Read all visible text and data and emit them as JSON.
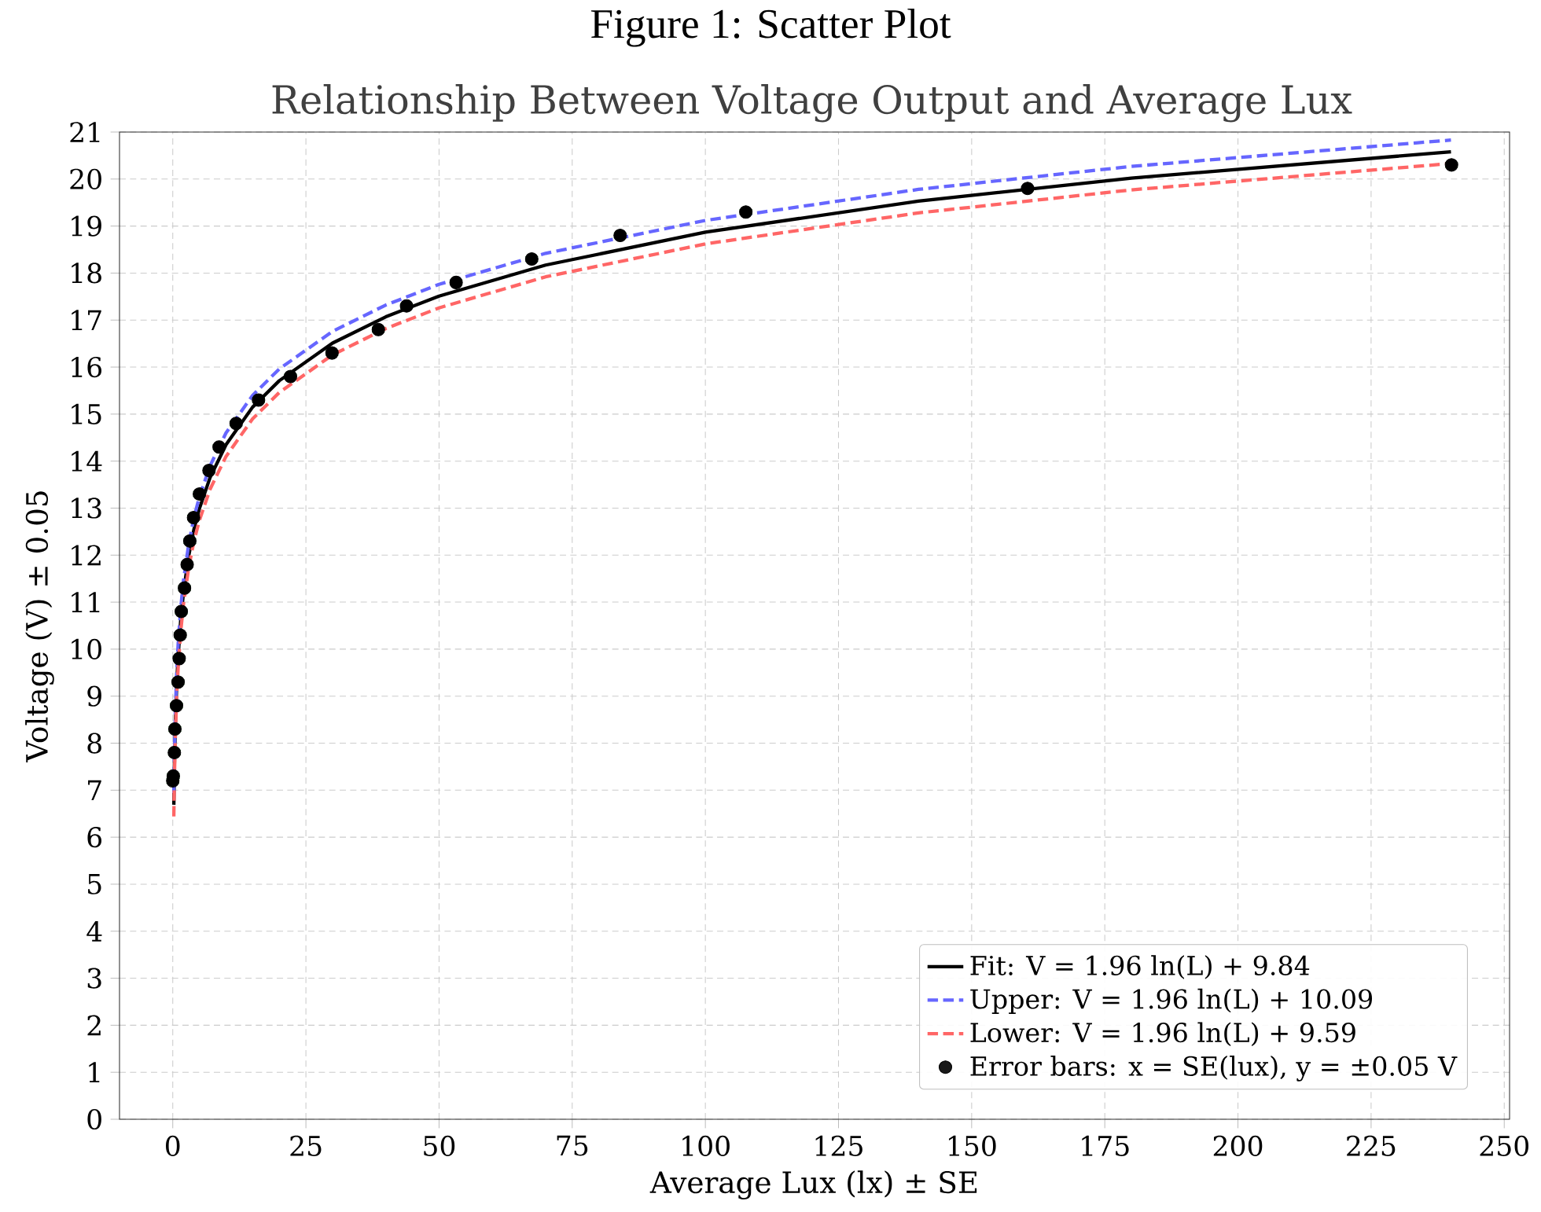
{
  "chart_data": {
    "type": "scatter",
    "title": "Figure 1: Scatter Plot",
    "subtitle": "Relationship Between Voltage Output and Average Lux",
    "xlabel": "Average Lux (lx) ± SE",
    "ylabel": "Voltage (V) ± 0.05",
    "xlim": [
      -10,
      251
    ],
    "ylim": [
      0,
      21
    ],
    "xticks": [
      0,
      25,
      50,
      75,
      100,
      125,
      150,
      175,
      200,
      225,
      250
    ],
    "yticks": [
      0,
      1,
      2,
      3,
      4,
      5,
      6,
      7,
      8,
      9,
      10,
      11,
      12,
      13,
      14,
      15,
      16,
      17,
      18,
      19,
      20,
      21
    ],
    "grid": true,
    "legend": "bottom right",
    "series": [
      {
        "type": "line",
        "name": "Fit: V = 1.96 ln(L) + 9.84",
        "color": "#000000",
        "line_style": "solid",
        "marker": "none",
        "x": [
          0.2,
          0.3,
          0.5,
          0.75,
          1,
          1.5,
          2,
          3,
          4,
          5,
          7,
          10,
          15,
          20,
          30,
          40,
          50,
          70,
          100,
          140,
          180,
          240
        ],
        "values": [
          6.69,
          7.48,
          8.48,
          9.28,
          9.84,
          10.63,
          11.2,
          11.99,
          12.56,
          12.99,
          13.65,
          14.35,
          15.15,
          15.71,
          16.51,
          17.07,
          17.51,
          18.17,
          18.87,
          19.53,
          20.02,
          20.58
        ]
      },
      {
        "type": "line",
        "name": "Upper: V = 1.96 ln(L) + 10.09",
        "color": "#6666ff",
        "line_style": "dashed",
        "marker": "none",
        "x": [
          0.2,
          0.3,
          0.5,
          0.75,
          1,
          1.5,
          2,
          3,
          4,
          5,
          7,
          10,
          15,
          20,
          30,
          40,
          50,
          70,
          100,
          140,
          180,
          240
        ],
        "values": [
          6.94,
          7.73,
          8.73,
          9.53,
          10.09,
          10.88,
          11.45,
          12.24,
          12.81,
          13.24,
          13.9,
          14.6,
          15.4,
          15.96,
          16.76,
          17.32,
          17.76,
          18.42,
          19.12,
          19.78,
          20.27,
          20.83
        ]
      },
      {
        "type": "line",
        "name": "Lower: V = 1.96 ln(L) + 9.59",
        "color": "#ff6666",
        "line_style": "dashed",
        "marker": "none",
        "x": [
          0.2,
          0.3,
          0.5,
          0.75,
          1,
          1.5,
          2,
          3,
          4,
          5,
          7,
          10,
          15,
          20,
          30,
          40,
          50,
          70,
          100,
          140,
          180,
          240
        ],
        "values": [
          6.44,
          7.23,
          8.23,
          9.03,
          9.59,
          10.38,
          10.95,
          11.74,
          12.31,
          12.74,
          13.4,
          14.1,
          14.9,
          15.46,
          16.26,
          16.82,
          17.26,
          17.92,
          18.62,
          19.28,
          19.77,
          20.33
        ]
      },
      {
        "name": "Error bars: x = SE(lux), y = ±0.05 V",
        "color": "#000000",
        "marker": "circle",
        "x": [
          0.0,
          0.1,
          0.3,
          0.4,
          0.7,
          1.0,
          1.2,
          1.4,
          1.6,
          2.2,
          2.7,
          3.2,
          3.9,
          5.0,
          6.8,
          8.7,
          11.9,
          16.1,
          22.1,
          29.9,
          38.6,
          43.9,
          53.2,
          67.4,
          84.0,
          107.6,
          160.5,
          240.1
        ],
        "values": [
          7.2,
          7.3,
          7.8,
          8.3,
          8.8,
          9.3,
          9.8,
          10.3,
          10.8,
          11.3,
          11.8,
          12.3,
          12.8,
          13.3,
          13.8,
          14.3,
          14.8,
          15.3,
          15.8,
          16.3,
          16.8,
          17.3,
          17.8,
          18.3,
          18.8,
          19.3,
          19.8,
          20.3
        ],
        "errors": [
          0.05,
          0.05,
          0.05,
          0.05,
          0.05,
          0.05,
          0.05,
          0.05,
          0.05,
          0.05,
          0.05,
          0.05,
          0.05,
          0.05,
          0.05,
          0.05,
          0.05,
          0.05,
          0.05,
          0.05,
          0.05,
          0.05,
          0.05,
          0.05,
          0.05,
          0.05,
          0.05,
          0.05
        ]
      }
    ]
  }
}
